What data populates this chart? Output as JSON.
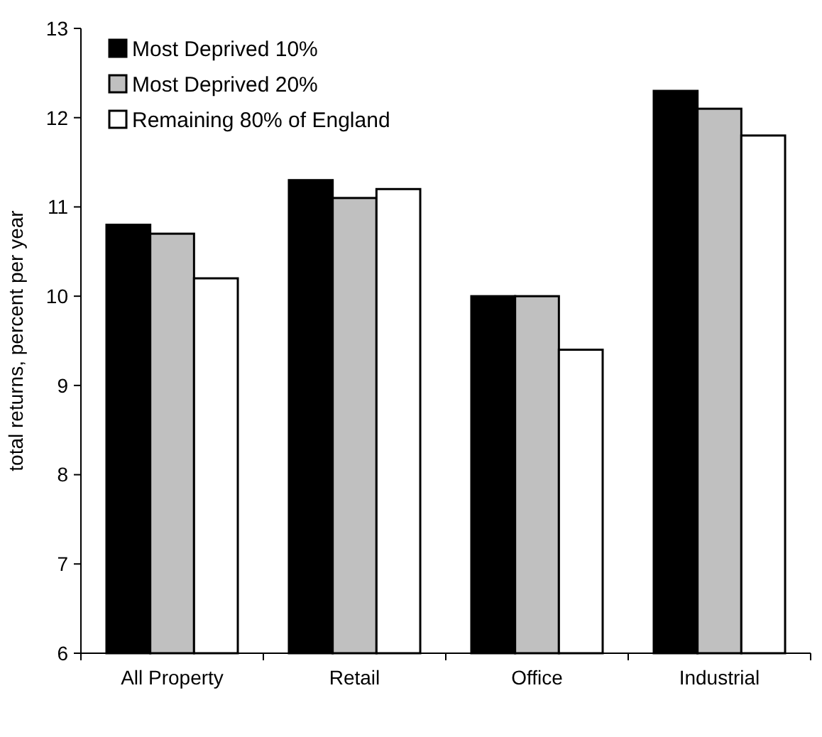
{
  "chart_data": {
    "type": "bar",
    "ylabel": "total returns, percent per year",
    "categories": [
      "All Property",
      "Retail",
      "Office",
      "Industrial"
    ],
    "series": [
      {
        "name": "Most Deprived 10%",
        "color": "#000000",
        "values": [
          10.8,
          11.3,
          10.0,
          12.3
        ]
      },
      {
        "name": "Most Deprived 20%",
        "color": "#c0c0c0",
        "values": [
          10.7,
          11.1,
          10.0,
          12.1
        ]
      },
      {
        "name": "Remaining 80% of England",
        "color": "#ffffff",
        "values": [
          10.2,
          11.2,
          9.4,
          11.8
        ]
      }
    ],
    "ylim": [
      6,
      13
    ],
    "yticks": [
      6,
      7,
      8,
      9,
      10,
      11,
      12,
      13
    ],
    "grid": false,
    "legend": "top left"
  }
}
